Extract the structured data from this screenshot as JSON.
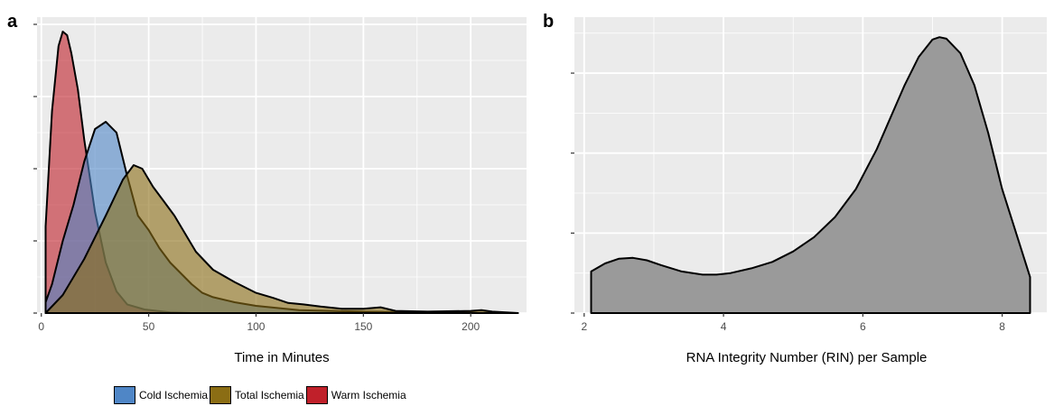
{
  "panels": {
    "a": {
      "label": "a",
      "xlabel": "Time in Minutes",
      "xticks": [
        0,
        50,
        100,
        150,
        200
      ]
    },
    "b": {
      "label": "b",
      "xlabel": "RNA Integrity Number (RIN) per Sample",
      "xticks": [
        2,
        4,
        6,
        8
      ]
    }
  },
  "legend": {
    "items": [
      {
        "label": "Cold Ischemia",
        "color": "#4f86c6"
      },
      {
        "label": "Total Ischemia",
        "color": "#8b6d14"
      },
      {
        "label": "Warm Ischemia",
        "color": "#c0202a"
      }
    ]
  },
  "chart_data": [
    {
      "type": "area",
      "title": "",
      "xlabel": "Time in Minutes",
      "ylabel": "",
      "xlim": [
        -2,
        226
      ],
      "ylim": [
        0,
        0.041
      ],
      "grid": true,
      "legend_position": "bottom",
      "series": [
        {
          "name": "Warm Ischemia",
          "color": "#c0202a",
          "x": [
            2,
            5,
            8,
            10,
            12,
            14,
            17,
            20,
            25,
            30,
            35,
            40,
            48,
            60,
            70
          ],
          "y": [
            0.012,
            0.028,
            0.037,
            0.039,
            0.0385,
            0.036,
            0.031,
            0.024,
            0.014,
            0.007,
            0.003,
            0.0012,
            0.0005,
            0.0001,
            0
          ]
        },
        {
          "name": "Cold Ischemia",
          "color": "#4f86c6",
          "x": [
            2,
            5,
            10,
            15,
            20,
            25,
            30,
            35,
            40,
            45,
            50,
            55,
            60,
            65,
            70,
            75,
            80,
            90,
            100,
            110,
            120,
            150,
            180,
            222
          ],
          "y": [
            0.0015,
            0.004,
            0.01,
            0.015,
            0.021,
            0.0255,
            0.0265,
            0.025,
            0.019,
            0.0135,
            0.0115,
            0.009,
            0.007,
            0.0055,
            0.004,
            0.0028,
            0.0022,
            0.0015,
            0.001,
            0.0007,
            0.0004,
            0.0002,
            0.0001,
            0
          ]
        },
        {
          "name": "Total Ischemia",
          "color": "#8b6d14",
          "x": [
            2,
            10,
            20,
            30,
            38,
            43,
            47,
            52,
            57,
            62,
            67,
            72,
            80,
            90,
            100,
            108,
            115,
            122,
            130,
            140,
            150,
            158,
            165,
            180,
            200,
            205,
            210,
            222
          ],
          "y": [
            0,
            0.0025,
            0.0075,
            0.0135,
            0.0185,
            0.0205,
            0.02,
            0.0175,
            0.0155,
            0.0135,
            0.011,
            0.0085,
            0.006,
            0.0043,
            0.0028,
            0.0021,
            0.0014,
            0.0012,
            0.0009,
            0.0006,
            0.0006,
            0.0008,
            0.0003,
            0.0002,
            0.0003,
            0.0004,
            0.0002,
            0
          ]
        }
      ]
    },
    {
      "type": "area",
      "title": "",
      "xlabel": "RNA Integrity Number (RIN) per Sample",
      "ylabel": "",
      "xlim": [
        1.86,
        8.64
      ],
      "ylim": [
        0,
        0.37
      ],
      "grid": true,
      "legend_position": "none",
      "series": [
        {
          "color": "#9a9a9a",
          "x": [
            2.1,
            2.3,
            2.5,
            2.7,
            2.9,
            3.1,
            3.4,
            3.7,
            3.9,
            4.1,
            4.4,
            4.7,
            5.0,
            5.3,
            5.6,
            5.9,
            6.2,
            6.4,
            6.6,
            6.8,
            7.0,
            7.1,
            7.2,
            7.4,
            7.6,
            7.8,
            8.0,
            8.2,
            8.4
          ],
          "y": [
            0.052,
            0.062,
            0.068,
            0.069,
            0.066,
            0.06,
            0.052,
            0.048,
            0.048,
            0.05,
            0.056,
            0.064,
            0.077,
            0.095,
            0.12,
            0.155,
            0.205,
            0.245,
            0.285,
            0.32,
            0.342,
            0.345,
            0.343,
            0.325,
            0.285,
            0.225,
            0.155,
            0.1,
            0.045
          ]
        }
      ]
    }
  ]
}
